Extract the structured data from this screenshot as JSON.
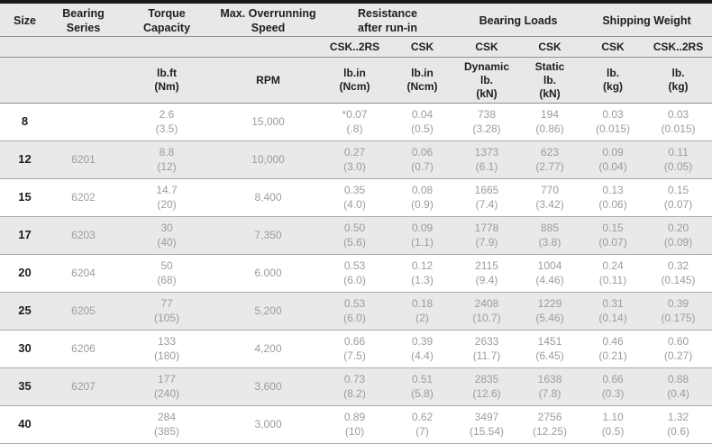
{
  "colors": {
    "top_bar": "#191919",
    "header_bg": "#e8e8e8",
    "row_alt_bg": "#e9e9e9",
    "text_dark": "#1e1e1e",
    "text_data": "#9c9c9c",
    "line": "#ababab",
    "line_dark": "#8f8f8f"
  },
  "table": {
    "header": {
      "groups": [
        {
          "label": "Size"
        },
        {
          "label": "Bearing\nSeries"
        },
        {
          "label": "Torque\nCapacity"
        },
        {
          "label": "Max. Overrunning\nSpeed"
        },
        {
          "label": "Resistance\nafter run-in"
        },
        {
          "label": "Bearing Loads"
        },
        {
          "label": "Shipping Weight"
        }
      ],
      "variants": [
        "CSK..2RS",
        "CSK",
        "CSK",
        "CSK",
        "CSK",
        "CSK..2RS"
      ],
      "units": [
        "lb.ft\n(Nm)",
        "RPM",
        "lb.in\n(Ncm)",
        "lb.in\n(Ncm)",
        "Dynamic\nlb.\n(kN)",
        "Static\nlb.\n(kN)",
        "lb.\n(kg)",
        "lb.\n(kg)"
      ]
    },
    "rows": [
      {
        "size": "8",
        "series": "",
        "torque": "2.6\n(3.5)",
        "speed": "15,000",
        "res_csk2rs": "*0.07\n(.8)",
        "res_csk": "0.04\n(0.5)",
        "load_dynamic": "738\n(3.28)",
        "load_static": "194\n(0.86)",
        "wt_csk": "0.03\n(0.015)",
        "wt_csk2rs": "0.03\n(0.015)"
      },
      {
        "size": "12",
        "series": "6201",
        "torque": "8.8\n(12)",
        "speed": "10,000",
        "res_csk2rs": "0.27\n(3.0)",
        "res_csk": "0.06\n(0.7)",
        "load_dynamic": "1373\n(6.1)",
        "load_static": "623\n(2.77)",
        "wt_csk": "0.09\n(0.04)",
        "wt_csk2rs": "0.11\n(0.05)"
      },
      {
        "size": "15",
        "series": "6202",
        "torque": "14.7\n(20)",
        "speed": "8,400",
        "res_csk2rs": "0.35\n(4.0)",
        "res_csk": "0.08\n(0.9)",
        "load_dynamic": "1665\n(7.4)",
        "load_static": "770\n(3.42)",
        "wt_csk": "0.13\n(0.06)",
        "wt_csk2rs": "0.15\n(0.07)"
      },
      {
        "size": "17",
        "series": "6203",
        "torque": "30\n(40)",
        "speed": "7,350",
        "res_csk2rs": "0.50\n(5.6)",
        "res_csk": "0.09\n(1.1)",
        "load_dynamic": "1778\n(7.9)",
        "load_static": "885\n(3.8)",
        "wt_csk": "0.15\n(0.07)",
        "wt_csk2rs": "0.20\n(0.09)"
      },
      {
        "size": "20",
        "series": "6204",
        "torque": "50\n(68)",
        "speed": "6.000",
        "res_csk2rs": "0.53\n(6.0)",
        "res_csk": "0.12\n(1.3)",
        "load_dynamic": "2115\n(9.4)",
        "load_static": "1004\n(4.46)",
        "wt_csk": "0.24\n(0.11)",
        "wt_csk2rs": "0.32\n(0.145)"
      },
      {
        "size": "25",
        "series": "6205",
        "torque": "77\n(105)",
        "speed": "5,200",
        "res_csk2rs": "0.53\n(6.0)",
        "res_csk": "0.18\n(2)",
        "load_dynamic": "2408\n(10.7)",
        "load_static": "1229\n(5.46)",
        "wt_csk": "0.31\n(0.14)",
        "wt_csk2rs": "0.39\n(0.175)"
      },
      {
        "size": "30",
        "series": "6206",
        "torque": "133\n(180)",
        "speed": "4,200",
        "res_csk2rs": "0.66\n(7.5)",
        "res_csk": "0.39\n(4.4)",
        "load_dynamic": "2633\n(11.7)",
        "load_static": "1451\n(6.45)",
        "wt_csk": "0.46\n(0.21)",
        "wt_csk2rs": "0.60\n(0.27)"
      },
      {
        "size": "35",
        "series": "6207",
        "torque": "177\n(240)",
        "speed": "3,600",
        "res_csk2rs": "0.73\n(8.2)",
        "res_csk": "0.51\n(5.8)",
        "load_dynamic": "2835\n(12.6)",
        "load_static": "1638\n(7.8)",
        "wt_csk": "0.66\n(0.3)",
        "wt_csk2rs": "0.88\n(0.4)"
      },
      {
        "size": "40",
        "series": "",
        "torque": "284\n(385)",
        "speed": "3,000",
        "res_csk2rs": "0.89\n(10)",
        "res_csk": "0.62\n(7)",
        "load_dynamic": "3497\n(15.54)",
        "load_static": "2756\n(12.25)",
        "wt_csk": "1.10\n(0.5)",
        "wt_csk2rs": "1.32\n(0.6)"
      }
    ]
  }
}
